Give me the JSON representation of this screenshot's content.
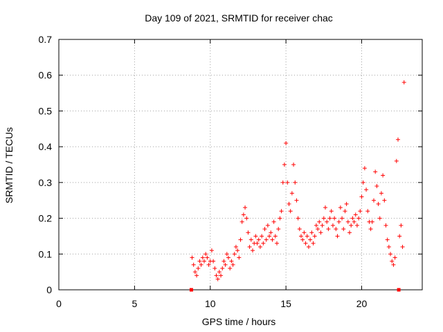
{
  "chart_data": {
    "type": "scatter",
    "title": "Day 109 of 2021, SRMTID for receiver chac",
    "xlabel": "GPS time / hours",
    "ylabel": "SRMTID / TECUs",
    "xlim": [
      0,
      24
    ],
    "ylim": [
      0,
      0.7
    ],
    "x_ticks": [
      0,
      5,
      10,
      15,
      20
    ],
    "x_tick_labels": [
      "0",
      "5",
      "10",
      "15",
      "20"
    ],
    "y_ticks": [
      0,
      0.1,
      0.2,
      0.3,
      0.4,
      0.5,
      0.6,
      0.7
    ],
    "y_tick_labels": [
      "0",
      "0.1",
      "0.2",
      "0.3",
      "0.4",
      "0.5",
      "0.6",
      "0.7"
    ],
    "grid": true,
    "marker": "+",
    "color": "#ff0000",
    "series": [
      {
        "name": "SRMTID",
        "points": [
          [
            8.8,
            0.09
          ],
          [
            8.9,
            0.07
          ],
          [
            9.0,
            0.05
          ],
          [
            9.1,
            0.04
          ],
          [
            9.2,
            0.06
          ],
          [
            9.3,
            0.08
          ],
          [
            9.4,
            0.07
          ],
          [
            9.5,
            0.09
          ],
          [
            9.6,
            0.08
          ],
          [
            9.7,
            0.1
          ],
          [
            9.8,
            0.09
          ],
          [
            9.9,
            0.07
          ],
          [
            10.0,
            0.08
          ],
          [
            10.1,
            0.11
          ],
          [
            10.2,
            0.08
          ],
          [
            10.3,
            0.06
          ],
          [
            10.4,
            0.04
          ],
          [
            10.5,
            0.03
          ],
          [
            10.6,
            0.05
          ],
          [
            10.7,
            0.04
          ],
          [
            10.8,
            0.06
          ],
          [
            10.9,
            0.08
          ],
          [
            11.0,
            0.07
          ],
          [
            11.1,
            0.1
          ],
          [
            11.2,
            0.09
          ],
          [
            11.3,
            0.06
          ],
          [
            11.4,
            0.08
          ],
          [
            11.5,
            0.07
          ],
          [
            11.6,
            0.1
          ],
          [
            11.7,
            0.12
          ],
          [
            11.8,
            0.11
          ],
          [
            11.9,
            0.09
          ],
          [
            12.0,
            0.14
          ],
          [
            12.1,
            0.19
          ],
          [
            12.2,
            0.21
          ],
          [
            12.3,
            0.23
          ],
          [
            12.4,
            0.2
          ],
          [
            12.5,
            0.16
          ],
          [
            12.6,
            0.12
          ],
          [
            12.7,
            0.14
          ],
          [
            12.8,
            0.11
          ],
          [
            12.9,
            0.13
          ],
          [
            13.0,
            0.15
          ],
          [
            13.1,
            0.13
          ],
          [
            13.2,
            0.14
          ],
          [
            13.3,
            0.12
          ],
          [
            13.4,
            0.15
          ],
          [
            13.5,
            0.13
          ],
          [
            13.6,
            0.17
          ],
          [
            13.7,
            0.14
          ],
          [
            13.8,
            0.18
          ],
          [
            13.9,
            0.15
          ],
          [
            14.0,
            0.16
          ],
          [
            14.1,
            0.14
          ],
          [
            14.2,
            0.19
          ],
          [
            14.3,
            0.15
          ],
          [
            14.4,
            0.13
          ],
          [
            14.5,
            0.17
          ],
          [
            14.6,
            0.2
          ],
          [
            14.7,
            0.22
          ],
          [
            14.8,
            0.3
          ],
          [
            14.9,
            0.35
          ],
          [
            15.0,
            0.41
          ],
          [
            15.1,
            0.3
          ],
          [
            15.2,
            0.24
          ],
          [
            15.3,
            0.22
          ],
          [
            15.4,
            0.27
          ],
          [
            15.5,
            0.35
          ],
          [
            15.6,
            0.3
          ],
          [
            15.7,
            0.25
          ],
          [
            15.8,
            0.2
          ],
          [
            15.9,
            0.17
          ],
          [
            16.0,
            0.15
          ],
          [
            16.1,
            0.14
          ],
          [
            16.2,
            0.16
          ],
          [
            16.3,
            0.13
          ],
          [
            16.4,
            0.15
          ],
          [
            16.5,
            0.12
          ],
          [
            16.6,
            0.14
          ],
          [
            16.7,
            0.16
          ],
          [
            16.8,
            0.13
          ],
          [
            16.9,
            0.15
          ],
          [
            17.0,
            0.18
          ],
          [
            17.1,
            0.17
          ],
          [
            17.2,
            0.19
          ],
          [
            17.3,
            0.16
          ],
          [
            17.4,
            0.18
          ],
          [
            17.5,
            0.2
          ],
          [
            17.6,
            0.23
          ],
          [
            17.7,
            0.19
          ],
          [
            17.8,
            0.17
          ],
          [
            17.9,
            0.2
          ],
          [
            18.0,
            0.22
          ],
          [
            18.1,
            0.18
          ],
          [
            18.2,
            0.2
          ],
          [
            18.3,
            0.17
          ],
          [
            18.4,
            0.15
          ],
          [
            18.5,
            0.19
          ],
          [
            18.6,
            0.23
          ],
          [
            18.7,
            0.2
          ],
          [
            18.8,
            0.17
          ],
          [
            18.9,
            0.22
          ],
          [
            19.0,
            0.24
          ],
          [
            19.1,
            0.19
          ],
          [
            19.2,
            0.16
          ],
          [
            19.3,
            0.18
          ],
          [
            19.4,
            0.2
          ],
          [
            19.5,
            0.19
          ],
          [
            19.6,
            0.21
          ],
          [
            19.7,
            0.18
          ],
          [
            19.8,
            0.2
          ],
          [
            19.9,
            0.22
          ],
          [
            20.0,
            0.26
          ],
          [
            20.1,
            0.3
          ],
          [
            20.2,
            0.34
          ],
          [
            20.3,
            0.28
          ],
          [
            20.4,
            0.22
          ],
          [
            20.5,
            0.19
          ],
          [
            20.6,
            0.17
          ],
          [
            20.7,
            0.19
          ],
          [
            20.8,
            0.25
          ],
          [
            20.9,
            0.33
          ],
          [
            21.0,
            0.29
          ],
          [
            21.1,
            0.24
          ],
          [
            21.2,
            0.2
          ],
          [
            21.3,
            0.27
          ],
          [
            21.4,
            0.32
          ],
          [
            21.5,
            0.25
          ],
          [
            21.6,
            0.18
          ],
          [
            21.7,
            0.14
          ],
          [
            21.8,
            0.12
          ],
          [
            21.9,
            0.1
          ],
          [
            22.0,
            0.08
          ],
          [
            22.1,
            0.07
          ],
          [
            22.2,
            0.09
          ],
          [
            22.3,
            0.36
          ],
          [
            22.4,
            0.42
          ],
          [
            22.5,
            0.15
          ],
          [
            22.6,
            0.18
          ],
          [
            22.7,
            0.12
          ],
          [
            22.8,
            0.58
          ]
        ]
      },
      {
        "name": "zero-level markers",
        "points": [
          [
            8.75,
            0.0
          ],
          [
            22.45,
            0.0
          ]
        ]
      }
    ]
  }
}
